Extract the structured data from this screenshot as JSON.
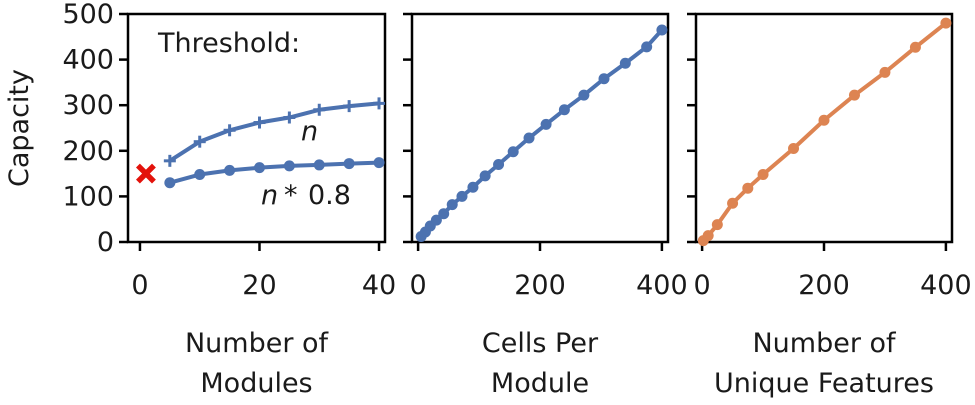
{
  "chart_data": [
    {
      "type": "line",
      "ylabel": "Capacity",
      "xlabel_lines": [
        "Number of",
        "Modules"
      ],
      "xlim": [
        -2,
        41
      ],
      "ylim": [
        0,
        500
      ],
      "xticks": [
        "0",
        "20",
        "40"
      ],
      "xtick_values": [
        0,
        20,
        40
      ],
      "yticks": [
        "0",
        "100",
        "200",
        "300",
        "400",
        "500"
      ],
      "ytick_values": [
        0,
        100,
        200,
        300,
        400,
        500
      ],
      "annotation_title": "Threshold:",
      "series": [
        {
          "name": "n",
          "color": "#4c72b0",
          "marker": "plus",
          "x": [
            5,
            10,
            15,
            20,
            25,
            30,
            35,
            40
          ],
          "y": [
            178,
            220,
            245,
            262,
            273,
            290,
            298,
            304
          ]
        },
        {
          "name": "n * 0.8",
          "color": "#4c72b0",
          "marker": "circle",
          "x": [
            5,
            10,
            15,
            20,
            25,
            30,
            35,
            40
          ],
          "y": [
            130,
            148,
            157,
            163,
            167,
            169,
            172,
            174
          ]
        }
      ],
      "reference_point": {
        "x": 1,
        "y": 150,
        "color": "#e3120b",
        "marker": "x"
      },
      "series_labels": {
        "n": "n",
        "n_star": "n",
        "n_star_op": "*",
        "n_star_val": "0.8"
      }
    },
    {
      "type": "line",
      "xlabel_lines": [
        "Cells Per",
        "Module"
      ],
      "xlim": [
        -10,
        410
      ],
      "ylim": [
        0,
        500
      ],
      "xticks": [
        "0",
        "200",
        "400"
      ],
      "xtick_values": [
        0,
        200,
        400
      ],
      "series": [
        {
          "color": "#4c72b0",
          "marker": "circle",
          "x": [
            5,
            12,
            20,
            30,
            42,
            56,
            72,
            90,
            110,
            132,
            156,
            182,
            210,
            240,
            272,
            305,
            340,
            375,
            400
          ],
          "y": [
            12,
            22,
            35,
            48,
            62,
            82,
            100,
            120,
            145,
            170,
            198,
            228,
            258,
            290,
            322,
            358,
            392,
            428,
            465
          ]
        }
      ]
    },
    {
      "type": "line",
      "xlabel_lines": [
        "Number of",
        "Unique Features"
      ],
      "xlim": [
        -10,
        410
      ],
      "ylim": [
        0,
        500
      ],
      "xticks": [
        "0",
        "200",
        "400"
      ],
      "xtick_values": [
        0,
        200,
        400
      ],
      "series": [
        {
          "color": "#dd8452",
          "marker": "circle",
          "x": [
            2,
            10,
            25,
            50,
            75,
            100,
            150,
            200,
            250,
            300,
            350,
            400
          ],
          "y": [
            3,
            14,
            38,
            85,
            118,
            148,
            205,
            267,
            322,
            372,
            427,
            480
          ]
        }
      ]
    }
  ]
}
